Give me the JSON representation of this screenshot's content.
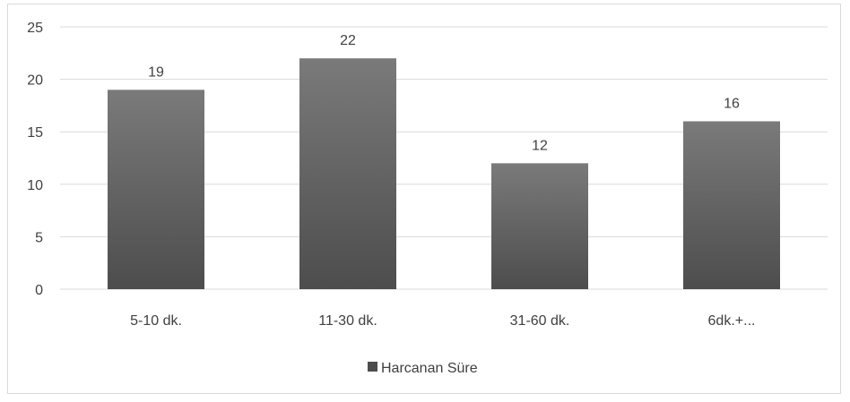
{
  "chart_data": {
    "type": "bar",
    "title": "",
    "xlabel": "",
    "ylabel": "",
    "categories": [
      "5-10 dk.",
      "11-30 dk.",
      "31-60 dk.",
      "6dk.+..."
    ],
    "series": [
      {
        "name": "Harcanan Süre",
        "values": [
          19,
          22,
          12,
          16
        ]
      }
    ],
    "ylim": [
      0,
      25
    ],
    "yticks": [
      0,
      5,
      10,
      15,
      20,
      25
    ],
    "grid": true,
    "legend": "bottom",
    "data_labels": true,
    "colors": {
      "bar_top": "#7a7a7a",
      "bar_bottom": "#4d4d4d",
      "grid": "#d9d9d9",
      "text": "#404040"
    }
  }
}
